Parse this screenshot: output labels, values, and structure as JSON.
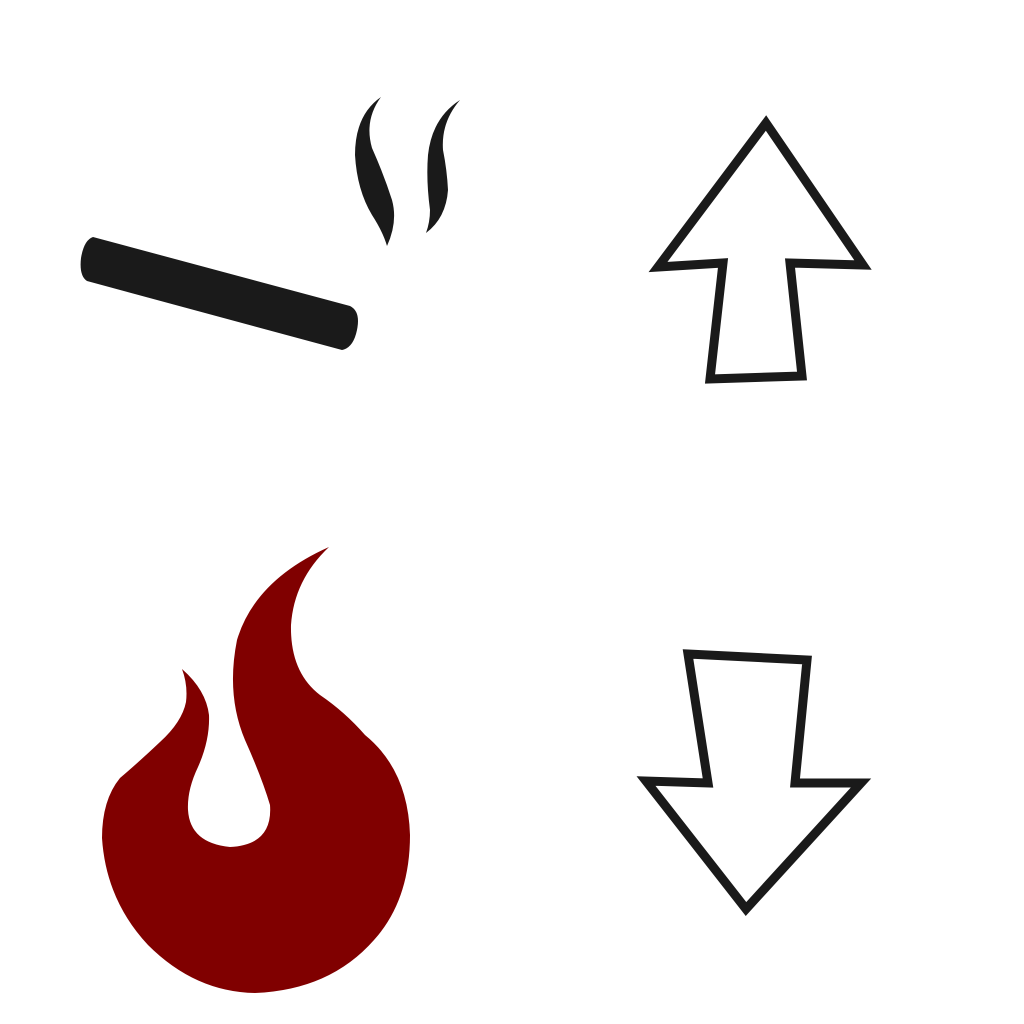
{
  "icons": {
    "cigarette": {
      "name": "cigarette-icon",
      "color": "#1a1a1a"
    },
    "smoke": {
      "name": "smoke-icon",
      "color": "#1a1a1a"
    },
    "flame": {
      "name": "flame-icon",
      "color": "#800000",
      "inner_color": "#ffffff"
    },
    "arrow_up": {
      "name": "arrow-up-icon",
      "stroke": "#1a1a1a",
      "fill": "#ffffff"
    },
    "arrow_down": {
      "name": "arrow-down-icon",
      "stroke": "#1a1a1a",
      "fill": "#ffffff"
    }
  }
}
